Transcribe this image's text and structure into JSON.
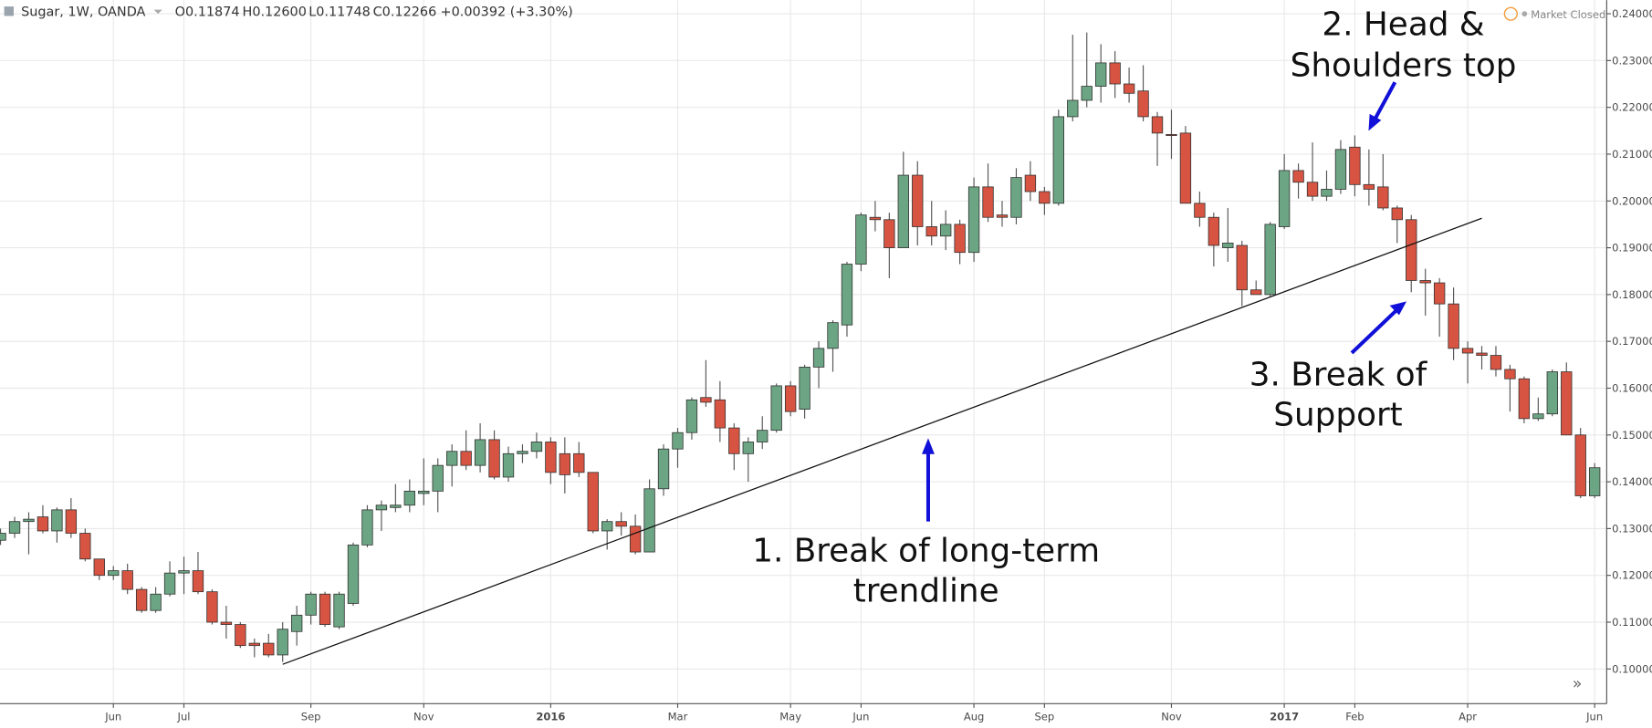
{
  "header": {
    "symbol": "Sugar, 1W, OANDA",
    "open": "O0.11874",
    "high": "H0.12600",
    "low": "L0.11748",
    "close": "C0.12266",
    "change": "+0.00392 (+3.30%)",
    "status": "Market Closed"
  },
  "chart_data": {
    "type": "candlestick",
    "categories": [
      null,
      null,
      null,
      null,
      null,
      null,
      null,
      null,
      "Jun",
      null,
      null,
      null,
      null,
      "Jul",
      null,
      null,
      null,
      null,
      null,
      null,
      null,
      null,
      "Sep",
      null,
      null,
      null,
      null,
      null,
      null,
      null,
      "Nov",
      null,
      null,
      null,
      null,
      null,
      null,
      null,
      null,
      "2016",
      null,
      null,
      null,
      null,
      null,
      null,
      null,
      null,
      "Mar",
      null,
      null,
      null,
      null,
      null,
      null,
      null,
      "May",
      null,
      null,
      null,
      null,
      "Jun",
      null,
      null,
      null,
      null,
      null,
      null,
      null,
      "Aug",
      null,
      null,
      null,
      null,
      "Sep",
      null,
      null,
      null,
      null,
      null,
      null,
      null,
      null,
      "Nov",
      null,
      null,
      null,
      null,
      null,
      null,
      null,
      "2017",
      null,
      null,
      null,
      null,
      "Feb",
      null,
      null,
      null,
      null,
      null,
      null,
      null,
      "Apr",
      null,
      null,
      null,
      null,
      null,
      null,
      null,
      null,
      "Jun"
    ],
    "open": [
      0.1275,
      0.129,
      0.1315,
      0.1325,
      0.1295,
      0.134,
      0.129,
      0.1235,
      0.12,
      0.121,
      0.117,
      0.1125,
      0.116,
      0.1205,
      0.121,
      0.1165,
      0.11,
      0.1095,
      0.1055,
      0.1055,
      0.103,
      0.108,
      0.1115,
      0.116,
      0.109,
      0.114,
      0.1265,
      0.134,
      0.1345,
      0.135,
      0.1375,
      0.138,
      0.1435,
      0.1465,
      0.1435,
      0.149,
      0.141,
      0.146,
      0.1465,
      0.1485,
      0.146,
      0.146,
      0.142,
      0.1295,
      0.1315,
      0.1305,
      0.125,
      0.1385,
      0.147,
      0.1505,
      0.158,
      0.1575,
      0.1515,
      0.146,
      0.1485,
      0.151,
      0.1605,
      0.1555,
      0.1645,
      0.1685,
      0.1735,
      0.1865,
      0.1965,
      0.196,
      0.19,
      0.2055,
      0.1945,
      0.1925,
      0.195,
      0.189,
      0.203,
      0.197,
      0.1965,
      0.2055,
      0.202,
      0.1995,
      0.218,
      0.2215,
      0.2245,
      0.2295,
      0.225,
      0.2235,
      0.218,
      0.2142,
      0.2145,
      0.1995,
      0.1965,
      0.19,
      0.1905,
      0.181,
      0.18,
      0.1945,
      0.2065,
      0.204,
      0.201,
      0.2025,
      0.2115,
      0.2035,
      0.203,
      0.1985,
      0.196,
      0.183,
      0.1825,
      0.178,
      0.1685,
      0.1675,
      0.167,
      0.164,
      0.162,
      0.1535,
      0.1545,
      0.1635,
      0.15,
      0.137
    ],
    "high": [
      0.13,
      0.1325,
      0.1335,
      0.135,
      0.1345,
      0.1365,
      0.13,
      0.1235,
      0.122,
      0.1225,
      0.1175,
      0.1175,
      0.123,
      0.124,
      0.125,
      0.117,
      0.1135,
      0.11,
      0.1065,
      0.1075,
      0.11,
      0.1135,
      0.1165,
      0.1165,
      0.1165,
      0.127,
      0.135,
      0.136,
      0.1395,
      0.1405,
      0.145,
      0.145,
      0.148,
      0.151,
      0.1525,
      0.151,
      0.1475,
      0.148,
      0.1505,
      0.1495,
      0.1495,
      0.1485,
      0.142,
      0.132,
      0.1335,
      0.133,
      0.1405,
      0.148,
      0.1515,
      0.158,
      0.166,
      0.1615,
      0.1525,
      0.1495,
      0.154,
      0.161,
      0.1615,
      0.165,
      0.17,
      0.1745,
      0.187,
      0.1975,
      0.2,
      0.1975,
      0.2105,
      0.2085,
      0.2,
      0.198,
      0.196,
      0.205,
      0.208,
      0.2,
      0.207,
      0.2085,
      0.203,
      0.2195,
      0.2355,
      0.236,
      0.2335,
      0.232,
      0.2285,
      0.229,
      0.219,
      0.2195,
      0.216,
      0.202,
      0.1975,
      0.1985,
      0.1915,
      0.183,
      0.1955,
      0.21,
      0.208,
      0.2125,
      0.2065,
      0.213,
      0.214,
      0.211,
      0.21,
      0.199,
      0.197,
      0.1855,
      0.1835,
      0.1815,
      0.17,
      0.169,
      0.169,
      0.165,
      0.1625,
      0.158,
      0.164,
      0.1655,
      0.1515,
      0.144
    ],
    "low": [
      0.1265,
      0.128,
      0.1245,
      0.129,
      0.127,
      0.128,
      0.123,
      0.119,
      0.119,
      0.116,
      0.112,
      0.112,
      0.1155,
      0.116,
      0.116,
      0.1095,
      0.1065,
      0.1045,
      0.1025,
      0.1025,
      0.1015,
      0.105,
      0.1095,
      0.109,
      0.1085,
      0.1135,
      0.126,
      0.1295,
      0.1335,
      0.1335,
      0.135,
      0.1335,
      0.139,
      0.1425,
      0.142,
      0.1405,
      0.14,
      0.144,
      0.145,
      0.1395,
      0.1375,
      0.141,
      0.129,
      0.1255,
      0.1285,
      0.1245,
      0.125,
      0.137,
      0.143,
      0.149,
      0.156,
      0.1485,
      0.1425,
      0.14,
      0.147,
      0.1505,
      0.154,
      0.1535,
      0.16,
      0.1635,
      0.171,
      0.185,
      0.1935,
      0.1835,
      0.19,
      0.1905,
      0.1905,
      0.1895,
      0.1865,
      0.187,
      0.1955,
      0.1945,
      0.195,
      0.2,
      0.197,
      0.199,
      0.217,
      0.22,
      0.221,
      0.222,
      0.221,
      0.217,
      0.2075,
      0.209,
      0.1995,
      0.1945,
      0.186,
      0.187,
      0.1775,
      0.18,
      0.1795,
      0.194,
      0.2005,
      0.2,
      0.2,
      0.2015,
      0.201,
      0.199,
      0.198,
      0.191,
      0.1805,
      0.1755,
      0.171,
      0.166,
      0.161,
      0.164,
      0.1625,
      0.155,
      0.1525,
      0.153,
      0.154,
      0.15,
      0.1365,
      0.1365
    ],
    "close": [
      0.129,
      0.1315,
      0.132,
      0.1295,
      0.134,
      0.129,
      0.1235,
      0.12,
      0.121,
      0.117,
      0.1125,
      0.116,
      0.1205,
      0.121,
      0.1165,
      0.11,
      0.1095,
      0.105,
      0.105,
      0.103,
      0.1085,
      0.1115,
      0.116,
      0.1095,
      0.116,
      0.1265,
      0.134,
      0.135,
      0.135,
      0.138,
      0.138,
      0.1435,
      0.1465,
      0.1435,
      0.149,
      0.141,
      0.146,
      0.1465,
      0.1485,
      0.142,
      0.1415,
      0.142,
      0.1295,
      0.1315,
      0.1305,
      0.125,
      0.1385,
      0.147,
      0.1505,
      0.1575,
      0.157,
      0.1515,
      0.146,
      0.1485,
      0.151,
      0.1605,
      0.155,
      0.1645,
      0.1685,
      0.174,
      0.1865,
      0.197,
      0.196,
      0.19,
      0.2055,
      0.1945,
      0.1925,
      0.195,
      0.189,
      0.203,
      0.1965,
      0.1965,
      0.205,
      0.202,
      0.1995,
      0.218,
      0.2215,
      0.2245,
      0.2295,
      0.225,
      0.223,
      0.218,
      0.2145,
      0.214,
      0.1995,
      0.1965,
      0.1905,
      0.191,
      0.181,
      0.18,
      0.195,
      0.2065,
      0.204,
      0.201,
      0.2025,
      0.211,
      0.2035,
      0.2025,
      0.1985,
      0.196,
      0.183,
      0.1825,
      0.178,
      0.1685,
      0.1675,
      0.167,
      0.164,
      0.162,
      0.1535,
      0.1545,
      0.1635,
      0.15,
      0.137,
      0.143
    ],
    "up_color": "#6ba583",
    "down_color": "#d75442",
    "ylim": [
      0.0926,
      0.2429
    ],
    "yticks": [
      {
        "value": 0.1,
        "label": "0.10000"
      },
      {
        "value": 0.11,
        "label": "0.11000"
      },
      {
        "value": 0.12,
        "label": "0.12000"
      },
      {
        "value": 0.13,
        "label": "0.13000"
      },
      {
        "value": 0.14,
        "label": "0.14000"
      },
      {
        "value": 0.15,
        "label": "0.15000"
      },
      {
        "value": 0.16,
        "label": "0.16000"
      },
      {
        "value": 0.17,
        "label": "0.17000"
      },
      {
        "value": 0.18,
        "label": "0.18000"
      },
      {
        "value": 0.19,
        "label": "0.19000"
      },
      {
        "value": 0.2,
        "label": "0.20000"
      },
      {
        "value": 0.21,
        "label": "0.21000"
      },
      {
        "value": 0.22,
        "label": "0.22000"
      },
      {
        "value": 0.23,
        "label": "0.23000"
      },
      {
        "value": 0.24,
        "label": "0.24000"
      }
    ],
    "grid": true,
    "trendline": {
      "x": [
        20,
        105
      ],
      "values": [
        0.101,
        0.1963
      ]
    },
    "annotations": [
      {
        "lines": [
          "1. Break of long-term",
          "trendline"
        ]
      },
      {
        "lines": [
          "2. Head &",
          "Shoulders top"
        ]
      },
      {
        "lines": [
          "3. Break of",
          "Support"
        ]
      }
    ]
  }
}
